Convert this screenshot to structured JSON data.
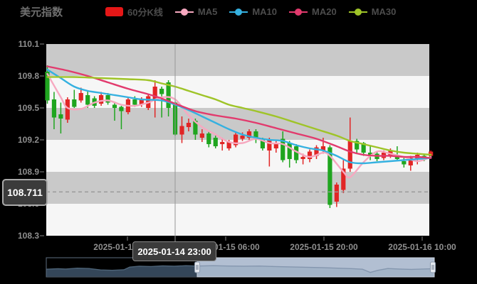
{
  "title": "美元指数",
  "legend": {
    "items": [
      {
        "key": "kline",
        "label": "60分K线",
        "color": "#e51717",
        "marker": "rect"
      },
      {
        "key": "ma5",
        "label": "MA5",
        "color": "#f7a8c0",
        "marker": "line-dot"
      },
      {
        "key": "ma10",
        "label": "MA10",
        "color": "#35b1e0",
        "marker": "line-dot"
      },
      {
        "key": "ma20",
        "label": "MA20",
        "color": "#e23a6d",
        "marker": "line-dot"
      },
      {
        "key": "ma30",
        "label": "MA30",
        "color": "#9fc428",
        "marker": "line-dot"
      }
    ]
  },
  "y_axis": {
    "labels": [
      "110.1",
      "109.8",
      "109.5",
      "109.2",
      "108.9",
      "108.6",
      "108.3"
    ]
  },
  "x_axis": {
    "labels": [
      "2025-01-14 16:00",
      "2025-01-15 06:00",
      "2025-01-15 20:00",
      "2025-01-16 10:00"
    ]
  },
  "crosshair": {
    "price_label": "108.711",
    "time_label": "2025-01-14 23:00"
  },
  "colors": {
    "background": "#000000",
    "band_gray": "#c9c9c9",
    "band_white": "#f6f6f6",
    "up_candle": "#e12525",
    "down_candle": "#1fa51f",
    "axis_text": "#8f8f8f",
    "crosshair": "#979797",
    "nav_dark_fill": "#344659",
    "nav_dark_line": "#4d6377",
    "nav_light_bg": "#b2bfd2",
    "nav_light_fill": "#a3b4c8",
    "nav_light_line": "#8496ae"
  },
  "chart_data": {
    "type": "candlestick",
    "title": "美元指数",
    "series_name": "60分K线",
    "ohlc_format": "[open, close, low, high]",
    "y_range": [
      108.3,
      110.1
    ],
    "y_ticks": [
      110.1,
      109.8,
      109.5,
      109.2,
      108.9,
      108.6,
      108.3
    ],
    "x_tick_labels": [
      "2025-01-14 16:00",
      "2025-01-15 06:00",
      "2025-01-15 20:00",
      "2025-01-16 10:00"
    ],
    "grid": "striped-bands",
    "legend_position": "top",
    "candles": [
      [
        109.84,
        109.57,
        109.54,
        109.9
      ],
      [
        109.58,
        109.41,
        109.3,
        109.65
      ],
      [
        109.44,
        109.4,
        109.26,
        109.55
      ],
      [
        109.39,
        109.58,
        109.36,
        109.6
      ],
      [
        109.58,
        109.51,
        109.5,
        109.67
      ],
      [
        109.57,
        109.64,
        109.55,
        109.69
      ],
      [
        109.62,
        109.53,
        109.5,
        109.66
      ],
      [
        109.59,
        109.52,
        109.5,
        109.61
      ],
      [
        109.54,
        109.62,
        109.52,
        109.65
      ],
      [
        109.62,
        109.55,
        109.53,
        109.64
      ],
      [
        109.53,
        109.5,
        109.38,
        109.56
      ],
      [
        109.51,
        109.47,
        109.3,
        109.52
      ],
      [
        109.46,
        109.58,
        109.44,
        109.6
      ],
      [
        109.58,
        109.53,
        109.51,
        109.61
      ],
      [
        109.53,
        109.58,
        109.51,
        109.6
      ],
      [
        109.5,
        109.61,
        109.48,
        109.63
      ],
      [
        109.57,
        109.7,
        109.41,
        109.76
      ],
      [
        109.68,
        109.63,
        109.41,
        109.7
      ],
      [
        109.74,
        109.5,
        109.42,
        109.76
      ],
      [
        109.55,
        109.25,
        109.24,
        109.56
      ],
      [
        109.25,
        109.33,
        109.17,
        109.42
      ],
      [
        109.32,
        109.36,
        109.28,
        109.4
      ],
      [
        109.38,
        109.25,
        109.2,
        109.4
      ],
      [
        109.22,
        109.26,
        109.18,
        109.3
      ],
      [
        109.26,
        109.16,
        109.13,
        109.28
      ],
      [
        109.22,
        109.14,
        109.12,
        109.24
      ],
      [
        109.16,
        109.18,
        109.1,
        109.22
      ],
      [
        109.12,
        109.18,
        109.1,
        109.2
      ],
      [
        109.15,
        109.25,
        109.13,
        109.27
      ],
      [
        109.21,
        109.24,
        109.19,
        109.27
      ],
      [
        109.22,
        109.28,
        109.2,
        109.3
      ],
      [
        109.28,
        109.2,
        109.17,
        109.3
      ],
      [
        109.2,
        109.12,
        109.1,
        109.22
      ],
      [
        109.1,
        109.2,
        108.95,
        109.22
      ],
      [
        109.12,
        109.17,
        109.08,
        109.2
      ],
      [
        109.21,
        109.01,
        108.99,
        109.28
      ],
      [
        109.17,
        109.02,
        108.94,
        109.19
      ],
      [
        109.14,
        109.01,
        108.98,
        109.16
      ],
      [
        109.02,
        109.04,
        108.97,
        109.07
      ],
      [
        109.02,
        109.09,
        108.99,
        109.11
      ],
      [
        109.05,
        109.13,
        109.02,
        109.15
      ],
      [
        109.1,
        109.14,
        109.07,
        109.22
      ],
      [
        109.13,
        108.59,
        108.56,
        109.15
      ],
      [
        108.62,
        108.78,
        108.57,
        108.8
      ],
      [
        108.73,
        108.93,
        108.7,
        109.01
      ],
      [
        108.93,
        109.19,
        108.9,
        109.41
      ],
      [
        109.19,
        109.11,
        109.07,
        109.21
      ],
      [
        109.17,
        109.08,
        109.05,
        109.18
      ],
      [
        109.08,
        109.06,
        109.01,
        109.14
      ],
      [
        109.07,
        109.02,
        109.0,
        109.09
      ],
      [
        109.03,
        109.08,
        109.01,
        109.1
      ],
      [
        109.05,
        109.1,
        109.03,
        109.12
      ],
      [
        109.06,
        109.02,
        109.0,
        109.14
      ],
      [
        109.0,
        108.97,
        108.94,
        109.03
      ],
      [
        108.96,
        109.03,
        108.91,
        109.05
      ],
      [
        109.02,
        109.06,
        108.97,
        109.08
      ],
      [
        109.05,
        109.02,
        109.0,
        109.07
      ],
      [
        109.05,
        109.09,
        109.03,
        109.1
      ]
    ],
    "ma_series": [
      {
        "name": "MA5",
        "color": "#f7a8c0",
        "points": [
          [
            0,
            109.82
          ],
          [
            2,
            109.6
          ],
          [
            3,
            109.5
          ],
          [
            5,
            109.49
          ],
          [
            7,
            109.55
          ],
          [
            9,
            109.57
          ],
          [
            11,
            109.53
          ],
          [
            13,
            109.52
          ],
          [
            15,
            109.55
          ],
          [
            17,
            109.6
          ],
          [
            19,
            109.58
          ],
          [
            21,
            109.43
          ],
          [
            23,
            109.32
          ],
          [
            25,
            109.25
          ],
          [
            27,
            109.18
          ],
          [
            29,
            109.17
          ],
          [
            31,
            109.21
          ],
          [
            33,
            109.17
          ],
          [
            35,
            109.16
          ],
          [
            37,
            109.09
          ],
          [
            39,
            109.04
          ],
          [
            41,
            109.08
          ],
          [
            42,
            109.05
          ],
          [
            44,
            108.9
          ],
          [
            45,
            108.85
          ],
          [
            47,
            108.99
          ],
          [
            49,
            109.09
          ],
          [
            51,
            109.07
          ],
          [
            53,
            109.04
          ],
          [
            55,
            109.0
          ],
          [
            57,
            109.04
          ]
        ]
      },
      {
        "name": "MA10",
        "color": "#35b1e0",
        "points": [
          [
            0,
            109.86
          ],
          [
            2,
            109.78
          ],
          [
            4,
            109.7
          ],
          [
            6,
            109.66
          ],
          [
            8,
            109.64
          ],
          [
            10,
            109.62
          ],
          [
            12,
            109.6
          ],
          [
            14,
            109.58
          ],
          [
            17,
            109.57
          ],
          [
            19,
            109.53
          ],
          [
            21,
            109.48
          ],
          [
            23,
            109.42
          ],
          [
            25,
            109.36
          ],
          [
            27,
            109.3
          ],
          [
            29,
            109.25
          ],
          [
            31,
            109.22
          ],
          [
            33,
            109.2
          ],
          [
            35,
            109.19
          ],
          [
            37,
            109.15
          ],
          [
            39,
            109.12
          ],
          [
            41,
            109.1
          ],
          [
            43,
            109.05
          ],
          [
            45,
            108.99
          ],
          [
            47,
            108.98
          ],
          [
            49,
            108.99
          ],
          [
            51,
            109.0
          ],
          [
            53,
            109.01
          ],
          [
            55,
            109.02
          ],
          [
            57,
            109.03
          ]
        ]
      },
      {
        "name": "MA20",
        "color": "#e23a6d",
        "points": [
          [
            0,
            109.89
          ],
          [
            3,
            109.85
          ],
          [
            6,
            109.8
          ],
          [
            9,
            109.74
          ],
          [
            12,
            109.68
          ],
          [
            16,
            109.61
          ],
          [
            19,
            109.54
          ],
          [
            22,
            109.47
          ],
          [
            25,
            109.43
          ],
          [
            28,
            109.4
          ],
          [
            31,
            109.36
          ],
          [
            34,
            109.31
          ],
          [
            37,
            109.26
          ],
          [
            40,
            109.21
          ],
          [
            43,
            109.14
          ],
          [
            45,
            109.09
          ],
          [
            47,
            109.06
          ],
          [
            49,
            109.05
          ],
          [
            51,
            109.05
          ],
          [
            53,
            109.04
          ],
          [
            55,
            109.04
          ],
          [
            57,
            109.03
          ]
        ]
      },
      {
        "name": "MA30",
        "color": "#9fc428",
        "points": [
          [
            0,
            109.79
          ],
          [
            4,
            109.79
          ],
          [
            8,
            109.78
          ],
          [
            12,
            109.77
          ],
          [
            15,
            109.76
          ],
          [
            17,
            109.73
          ],
          [
            19,
            109.7
          ],
          [
            21,
            109.66
          ],
          [
            23,
            109.62
          ],
          [
            25,
            109.58
          ],
          [
            27,
            109.53
          ],
          [
            29,
            109.5
          ],
          [
            31,
            109.47
          ],
          [
            34,
            109.42
          ],
          [
            37,
            109.36
          ],
          [
            40,
            109.3
          ],
          [
            43,
            109.24
          ],
          [
            45,
            109.19
          ],
          [
            47,
            109.16
          ],
          [
            49,
            109.13
          ],
          [
            51,
            109.1
          ],
          [
            53,
            109.08
          ],
          [
            55,
            109.07
          ],
          [
            57,
            109.06
          ]
        ]
      }
    ],
    "crosshair": {
      "price": 108.711,
      "time": "2025-01-14 23:00"
    },
    "navigator": {
      "selected_start_frac": 0.389,
      "selected_end_frac": 1.0,
      "profile": [
        [
          0,
          0.4
        ],
        [
          0.03,
          0.43
        ],
        [
          0.05,
          0.41
        ],
        [
          0.08,
          0.46
        ],
        [
          0.11,
          0.44
        ],
        [
          0.14,
          0.36
        ],
        [
          0.17,
          0.34
        ],
        [
          0.2,
          0.37
        ],
        [
          0.215,
          0.52
        ],
        [
          0.24,
          0.57
        ],
        [
          0.27,
          0.55
        ],
        [
          0.3,
          0.59
        ],
        [
          0.33,
          0.57
        ],
        [
          0.36,
          0.6
        ],
        [
          0.39,
          0.58
        ],
        [
          0.43,
          0.6
        ],
        [
          0.47,
          0.58
        ],
        [
          0.51,
          0.57
        ],
        [
          0.55,
          0.58
        ],
        [
          0.59,
          0.55
        ],
        [
          0.63,
          0.53
        ],
        [
          0.67,
          0.51
        ],
        [
          0.71,
          0.49
        ],
        [
          0.75,
          0.46
        ],
        [
          0.79,
          0.43
        ],
        [
          0.815,
          0.4
        ],
        [
          0.835,
          0.22
        ],
        [
          0.855,
          0.34
        ],
        [
          0.88,
          0.44
        ],
        [
          0.91,
          0.41
        ],
        [
          0.94,
          0.39
        ],
        [
          0.97,
          0.41
        ],
        [
          1,
          0.43
        ]
      ]
    }
  }
}
